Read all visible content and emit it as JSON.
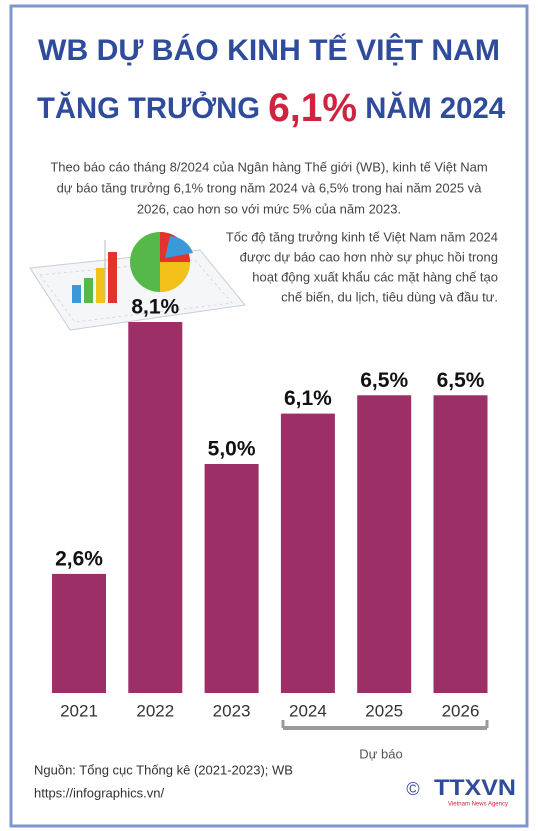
{
  "chart_data": {
    "type": "bar",
    "title": {
      "line1": "WB DỰ BÁO KINH TẾ VIỆT NAM",
      "before": "TĂNG TRƯỞNG",
      "highlight": "6,1%",
      "after": "NĂM 2024"
    },
    "description": [
      "Theo báo cáo tháng 8/2024 của Ngân hàng Thế giới (WB), kinh tế Việt Nam",
      "dự báo tăng trưởng 6,1% trong năm 2024 và 6,5% trong hai năm 2025 và",
      "2026, cao hơn so với mức 5% của năm 2023."
    ],
    "note": [
      "Tốc độ tăng trưởng kinh tế Việt Nam năm 2024",
      "được dự báo cao hơn nhờ sự phục hồi trong",
      "hoạt động xuất khẩu các mặt hàng chế tạo",
      "chế biến, du lịch, tiêu dùng và đầu tư."
    ],
    "categories": [
      "2021",
      "2022",
      "2023",
      "2024",
      "2025",
      "2026"
    ],
    "values": [
      2.6,
      8.1,
      5.0,
      6.1,
      6.5,
      6.5
    ],
    "value_labels": [
      "2,6%",
      "8,1%",
      "5,0%",
      "6,1%",
      "6,5%",
      "6,5%"
    ],
    "color": "#9b2f66",
    "annotation": "Dự báo",
    "source": [
      "Nguồn: Tổng cục Thống kê (2021-2023); WB",
      "https://infographics.vn/"
    ]
  },
  "logo": {
    "symbol": "©",
    "name": "TTXVN",
    "subtitle": "Vietnam News Agency"
  }
}
